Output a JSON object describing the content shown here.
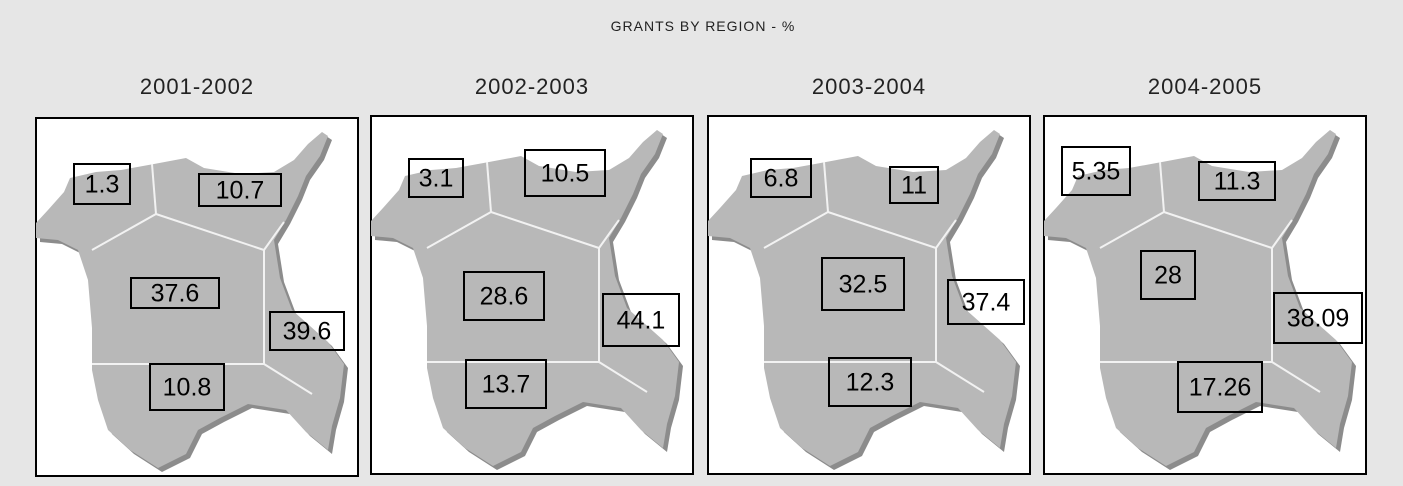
{
  "title": "GRANTS BY REGION - %",
  "panels": [
    {
      "year": "2001-2002",
      "regions": {
        "northwest": 1.3,
        "north": 10.7,
        "center": 37.6,
        "east": 39.6,
        "south": 10.8
      }
    },
    {
      "year": "2002-2003",
      "regions": {
        "northwest": 3.1,
        "north": 10.5,
        "center": 28.6,
        "east": 44.1,
        "south": 13.7
      }
    },
    {
      "year": "2003-2004",
      "regions": {
        "northwest": 6.8,
        "north": 11,
        "center": 32.5,
        "east": 37.4,
        "south": 12.3
      }
    },
    {
      "year": "2004-2005",
      "regions": {
        "northwest": 5.35,
        "north": 11.3,
        "center": 28,
        "east": 38.09,
        "south": 17.26
      }
    }
  ]
}
